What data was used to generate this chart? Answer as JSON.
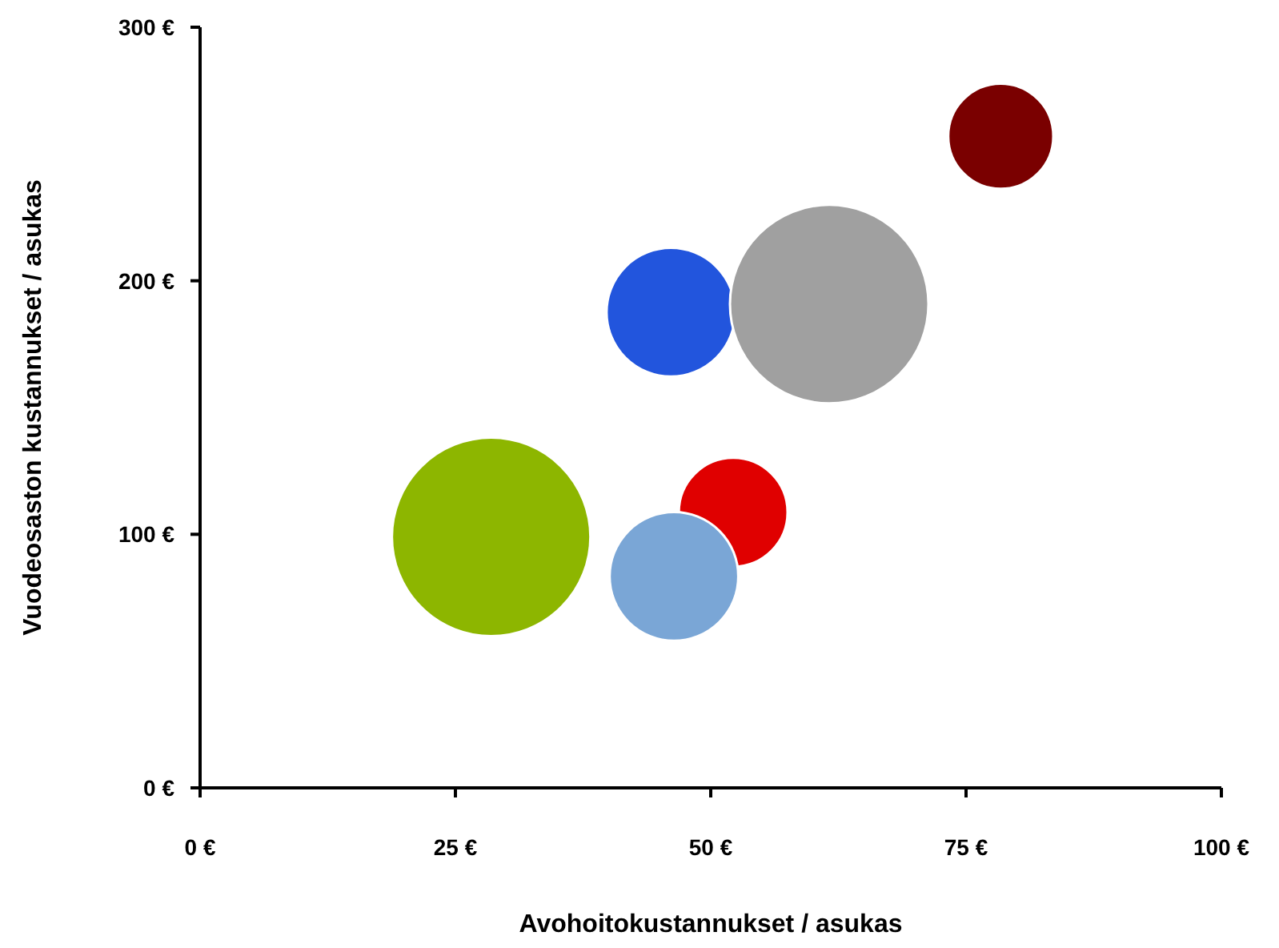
{
  "chart_data": {
    "type": "bubble",
    "xlabel": "Avohoitokustannukset / asukas",
    "ylabel": "Vuodeosaston kustannukset / asukas",
    "x": [
      28.5,
      46.1,
      61.6,
      78.4,
      52.2,
      46.4
    ],
    "values": [
      99,
      187.6,
      190.8,
      257,
      108.7,
      83.4
    ],
    "sizes": [
      1,
      0.42,
      1,
      0.28,
      0.3,
      0.42
    ],
    "colors": [
      "#8db600",
      "#2255dd",
      "#a0a0a0",
      "#7a0000",
      "#e00000",
      "#7aa6d6"
    ],
    "xlim": [
      0,
      100
    ],
    "xticks": [
      {
        "value": 0,
        "label": "0 €"
      },
      {
        "value": 25,
        "label": "25 €"
      },
      {
        "value": 50,
        "label": "50 €"
      },
      {
        "value": 75,
        "label": "75 €"
      },
      {
        "value": 100,
        "label": "100 €"
      }
    ],
    "ylim": [
      0,
      300
    ],
    "yticks": [
      {
        "value": 0,
        "label": "0 €"
      },
      {
        "value": 100,
        "label": "100 €"
      },
      {
        "value": 200,
        "label": "200 €"
      },
      {
        "value": 300,
        "label": "300 €"
      }
    ],
    "grid": false,
    "legend": false
  }
}
